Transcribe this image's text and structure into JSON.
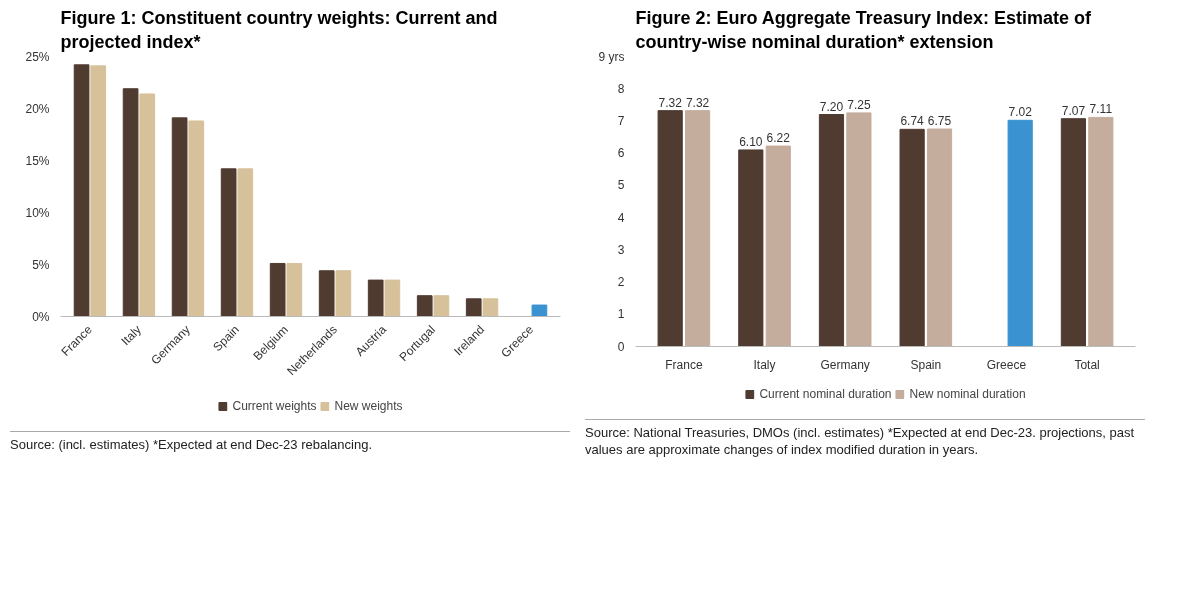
{
  "chart_data": [
    {
      "type": "bar",
      "title": "Figure 1: Constituent country weights: Current and projected index*",
      "categories": [
        "France",
        "Italy",
        "Germany",
        "Spain",
        "Belgium",
        "Netherlands",
        "Austria",
        "Portugal",
        "Ireland",
        "Greece"
      ],
      "series": [
        {
          "name": "Current weights",
          "color": "#4f3b30",
          "values": [
            24.2,
            21.9,
            19.1,
            14.2,
            5.1,
            4.4,
            3.5,
            2.0,
            1.7,
            null
          ]
        },
        {
          "name": "New weights",
          "color": "#d6c19a",
          "colors": [
            "#d6c19a",
            "#d6c19a",
            "#d6c19a",
            "#d6c19a",
            "#d6c19a",
            "#d6c19a",
            "#d6c19a",
            "#d6c19a",
            "#d6c19a",
            "#3a93d0"
          ],
          "values": [
            24.1,
            21.4,
            18.8,
            14.2,
            5.1,
            4.4,
            3.5,
            2.0,
            1.7,
            1.1
          ]
        }
      ],
      "ylim": [
        0,
        25
      ],
      "yticks": [
        {
          "value": 0,
          "label": "0%"
        },
        {
          "value": 5,
          "label": "5%"
        },
        {
          "value": 10,
          "label": "10%"
        },
        {
          "value": 15,
          "label": "15%"
        },
        {
          "value": 20,
          "label": "20%"
        },
        {
          "value": 25,
          "label": "25%"
        }
      ],
      "grid": false,
      "legend": "bottom",
      "annotations": [
        "Source: (incl. estimates) *Expected at end Dec-23 rebalancing."
      ]
    },
    {
      "type": "bar",
      "title": "Figure 2: Euro Aggregate Treasury Index: Estimate of country-wise nominal duration* extension",
      "categories": [
        "France",
        "Italy",
        "Germany",
        "Spain",
        "Greece",
        "Total"
      ],
      "series": [
        {
          "name": "Current nominal duration",
          "color": "#4f3b30",
          "values": [
            7.32,
            6.1,
            7.2,
            6.74,
            null,
            7.07
          ],
          "value_labels": [
            "7.32",
            "6.10",
            "7.20",
            "6.74",
            null,
            "7.07"
          ]
        },
        {
          "name": "New nominal duration",
          "color": "#c4ad9d",
          "colors": [
            "#c4ad9d",
            "#c4ad9d",
            "#c4ad9d",
            "#c4ad9d",
            "#3a93d0",
            "#c4ad9d"
          ],
          "values": [
            7.32,
            6.22,
            7.25,
            6.75,
            7.02,
            7.11
          ],
          "value_labels": [
            "7.32",
            "6.22",
            "7.25",
            "6.75",
            "7.02",
            "7.11"
          ]
        }
      ],
      "ylim": [
        0,
        9
      ],
      "yticks": [
        0,
        1,
        2,
        3,
        4,
        5,
        6,
        7,
        8,
        {
          "value": 9,
          "label": "9 yrs"
        }
      ],
      "grid": false,
      "legend": "bottom",
      "annotations": [
        "Source: National Treasuries, DMOs (incl. estimates) *Expected at end Dec-23. projections, past values are approximate changes of index modified duration in years."
      ]
    }
  ]
}
